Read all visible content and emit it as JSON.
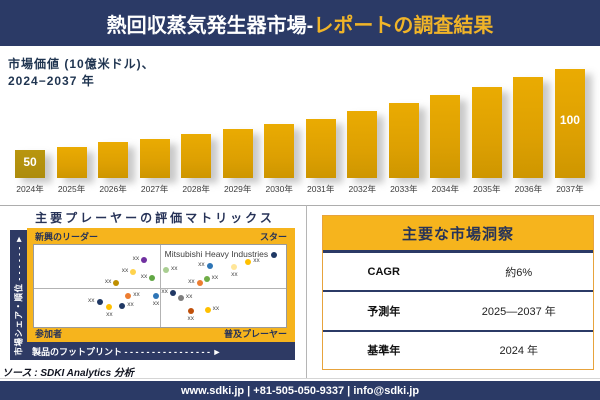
{
  "header": {
    "title_white": "熱回収蒸気発生器市場-",
    "title_yellow": "レポートの調査結果"
  },
  "chart_section": {
    "label_line1": "市場価値 (10億米ドル)、",
    "label_line2": "2024−2037 年",
    "first_bar_label": "50",
    "last_bar_label": "100"
  },
  "chart_data": [
    {
      "type": "bar",
      "title": "市場価値 (10億米ドル)、2024−2037 年",
      "ylabel": "10億米ドル",
      "categories": [
        "2024年",
        "2025年",
        "2026年",
        "2027年",
        "2028年",
        "2029年",
        "2030年",
        "2031年",
        "2032年",
        "2033年",
        "2034年",
        "2035年",
        "2036年",
        "2037年"
      ],
      "values": [
        50,
        52,
        55,
        57,
        60,
        63,
        66,
        69,
        74,
        79,
        84,
        89,
        95,
        100
      ],
      "data_labels_shown": {
        "2024": "50",
        "2037": "100"
      },
      "bar_color": "#DFA302",
      "first_bar_color": "#B29110",
      "grid": false,
      "legend": false
    },
    {
      "type": "scatter",
      "title": "主要プレーヤーの評価マトリックス",
      "xlabel": "製品のフットプリント",
      "ylabel": "市場シェア・順位",
      "quadrants": {
        "top_left": "新興のリーダー",
        "top_right": "スター",
        "bottom_left": "参加者",
        "bottom_right": "普及プレーヤー"
      },
      "highlight_company": "Mitsubishi Heavy Industries",
      "point_label": "xx",
      "points": [
        {
          "x": 43.7,
          "y": 17.9,
          "color": "#7030A0",
          "lpos": "left"
        },
        {
          "x": 39.4,
          "y": 33.3,
          "color": "#FFD34D",
          "lpos": "left"
        },
        {
          "x": 32.7,
          "y": 46.4,
          "color": "#BF8F00",
          "lpos": "left"
        },
        {
          "x": 46.9,
          "y": 40.5,
          "color": "#61A744",
          "lpos": "left"
        },
        {
          "x": 52.4,
          "y": 31.0,
          "color": "#A9CE91",
          "lpos": "right"
        },
        {
          "x": 95.3,
          "y": 11.9,
          "color": "#1F3864",
          "lpos": "company"
        },
        {
          "x": 69.7,
          "y": 25.0,
          "color": "#2E75B6",
          "lpos": "left"
        },
        {
          "x": 79.5,
          "y": 27.4,
          "color": "#FFE699",
          "lpos": "below"
        },
        {
          "x": 85.0,
          "y": 20.2,
          "color": "#FFC000",
          "lpos": "right"
        },
        {
          "x": 65.7,
          "y": 46.4,
          "color": "#ED7D31",
          "lpos": "left"
        },
        {
          "x": 68.5,
          "y": 41.7,
          "color": "#70AD47",
          "lpos": "right"
        },
        {
          "x": 37.4,
          "y": 61.9,
          "color": "#ED7D31",
          "lpos": "right"
        },
        {
          "x": 48.4,
          "y": 61.9,
          "color": "#2E75B6",
          "lpos": "below"
        },
        {
          "x": 26.0,
          "y": 69.0,
          "color": "#1F3864",
          "lpos": "left"
        },
        {
          "x": 35.0,
          "y": 73.8,
          "color": "#203864",
          "lpos": "right"
        },
        {
          "x": 29.9,
          "y": 76.2,
          "color": "#FFC000",
          "lpos": "below"
        },
        {
          "x": 55.1,
          "y": 58.3,
          "color": "#203864",
          "lpos": "left"
        },
        {
          "x": 58.3,
          "y": 64.3,
          "color": "#7F7F7F",
          "lpos": "right"
        },
        {
          "x": 62.2,
          "y": 81.0,
          "color": "#C0500A",
          "lpos": "below"
        },
        {
          "x": 68.9,
          "y": 79.8,
          "color": "#FFC000",
          "lpos": "right"
        }
      ]
    }
  ],
  "matrix_panel": {
    "y_axis_display": "市場シェア・順位 - - - - - - ►",
    "x_axis_display": "製品のフットプリント - - - - - - - - - - - - - - - - ►"
  },
  "insights": {
    "title": "主要な市場洞察",
    "rows": [
      {
        "label": "CAGR",
        "value": "約6%"
      },
      {
        "label": "予測年",
        "value": "2025—2037 年"
      },
      {
        "label": "基準年",
        "value": "2024 年"
      }
    ]
  },
  "source": "ソース : SDKI Analytics 分析",
  "footer": "www.sdki.jp | +81-505-050-9337 | info@sdki.jp",
  "colors": {
    "navy": "#2B3A66",
    "gold": "#F6B41D",
    "title_yellow": "#F0B428",
    "bar_gold": "#DFA302",
    "bar_first": "#B29110"
  }
}
